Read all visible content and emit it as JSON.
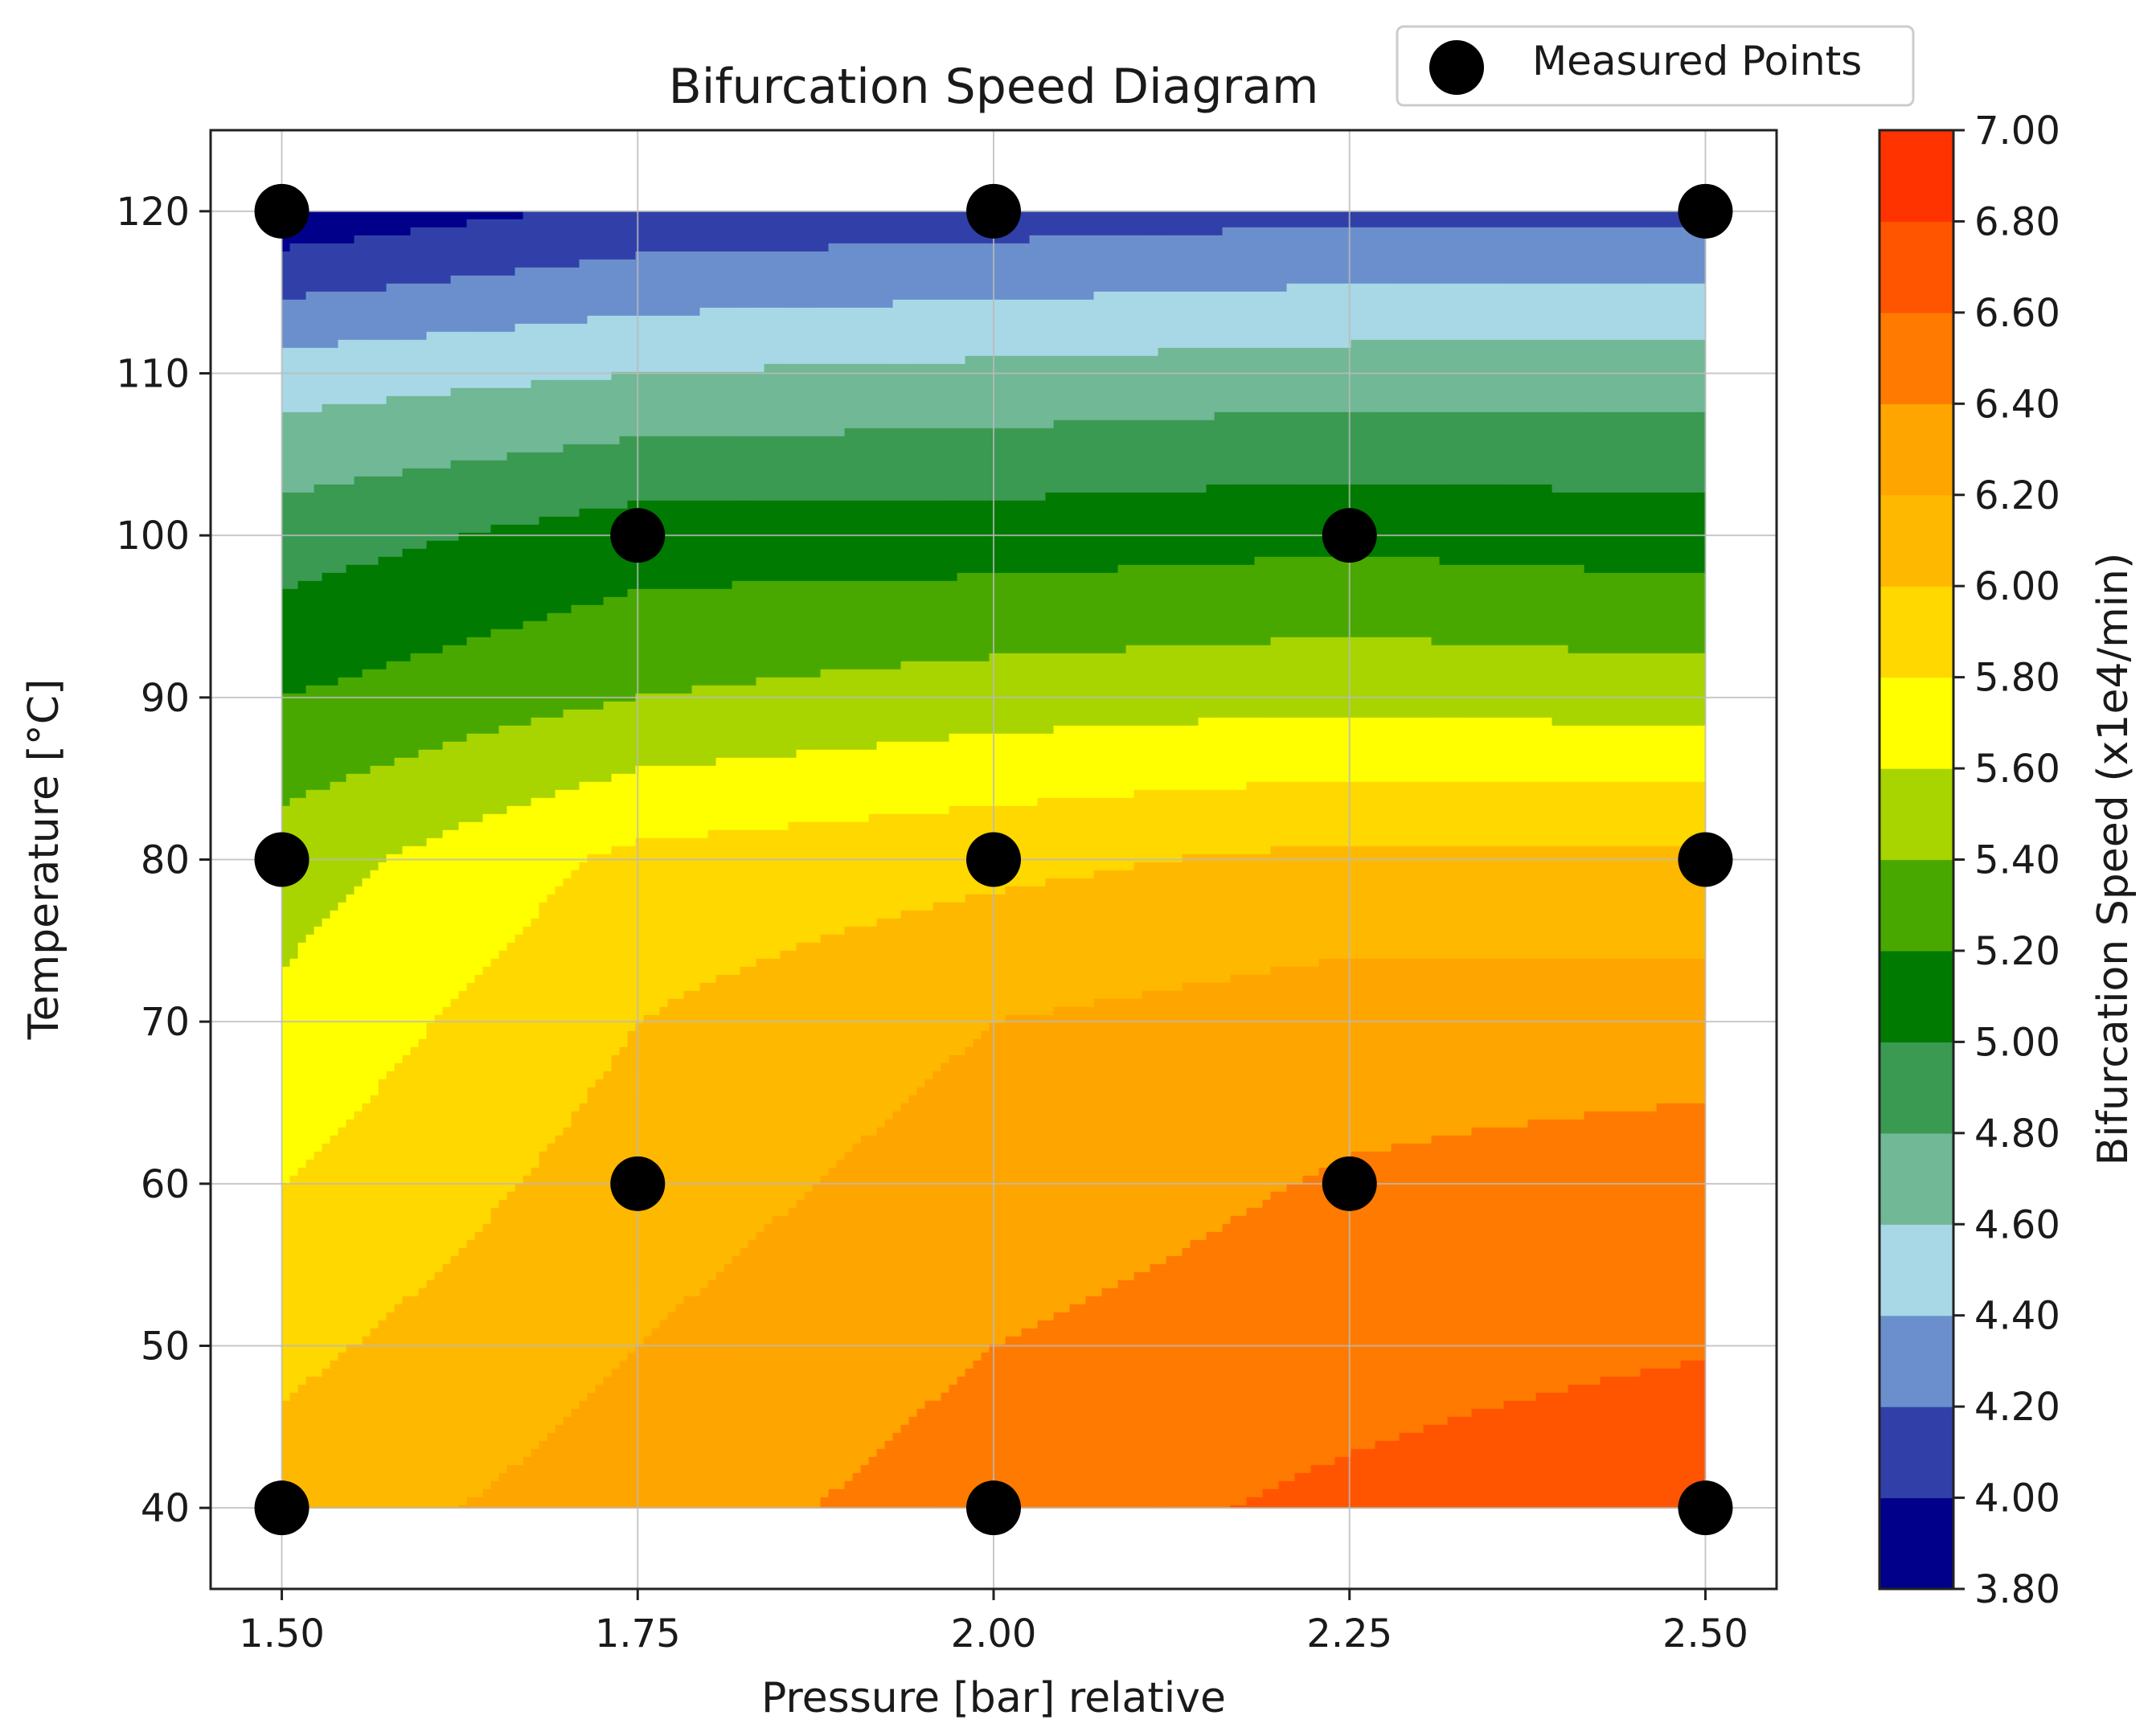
{
  "chart_data": {
    "type": "contour",
    "title": "Bifurcation Speed Diagram",
    "xlabel": "Pressure [bar] relative",
    "ylabel": "Temperature [°C]",
    "xlim": [
      1.45,
      2.55
    ],
    "ylim": [
      35,
      125
    ],
    "xticks": [
      1.5,
      1.75,
      2.0,
      2.25,
      2.5
    ],
    "xtick_labels": [
      "1.50",
      "1.75",
      "2.00",
      "2.25",
      "2.50"
    ],
    "yticks": [
      40,
      50,
      60,
      70,
      80,
      90,
      100,
      110,
      120
    ],
    "ytick_labels": [
      "40",
      "50",
      "60",
      "70",
      "80",
      "90",
      "100",
      "110",
      "120"
    ],
    "grid": true,
    "legend": {
      "label": "Measured Points",
      "placement": "top-right"
    },
    "measured_points": [
      {
        "x": 1.5,
        "y": 120
      },
      {
        "x": 2.0,
        "y": 120
      },
      {
        "x": 2.5,
        "y": 120
      },
      {
        "x": 1.75,
        "y": 100
      },
      {
        "x": 2.25,
        "y": 100
      },
      {
        "x": 1.5,
        "y": 80
      },
      {
        "x": 2.0,
        "y": 80
      },
      {
        "x": 2.5,
        "y": 80
      },
      {
        "x": 1.75,
        "y": 60
      },
      {
        "x": 2.25,
        "y": 60
      },
      {
        "x": 1.5,
        "y": 40
      },
      {
        "x": 2.0,
        "y": 40
      },
      {
        "x": 2.5,
        "y": 40
      }
    ],
    "field_grid": {
      "x": [
        1.5,
        1.75,
        2.0,
        2.25,
        2.5
      ],
      "y": [
        40,
        50,
        60,
        70,
        80,
        90,
        100,
        110,
        120
      ],
      "z": [
        [
          6.1,
          6.3,
          6.5,
          6.65,
          6.8
        ],
        [
          5.95,
          6.2,
          6.4,
          6.5,
          6.58
        ],
        [
          5.8,
          6.1,
          6.3,
          6.42,
          6.5
        ],
        [
          5.65,
          6.0,
          6.2,
          6.3,
          6.3
        ],
        [
          5.5,
          5.85,
          5.95,
          6.05,
          6.05
        ],
        [
          5.2,
          5.4,
          5.5,
          5.55,
          5.5
        ],
        [
          4.9,
          5.1,
          5.1,
          5.15,
          5.1
        ],
        [
          4.5,
          4.6,
          4.65,
          4.7,
          4.7
        ],
        [
          3.85,
          4.05,
          4.1,
          4.15,
          4.15
        ]
      ]
    },
    "colorbar": {
      "label": "Bifurcation Speed (x1e4/min)",
      "range": [
        3.8,
        7.0
      ],
      "levels": [
        3.8,
        4.0,
        4.2,
        4.4,
        4.6,
        4.8,
        5.0,
        5.2,
        5.4,
        5.6,
        5.8,
        6.0,
        6.2,
        6.4,
        6.6,
        6.8,
        7.0
      ],
      "tick_labels": [
        "3.80",
        "4.00",
        "4.20",
        "4.40",
        "4.60",
        "4.80",
        "5.00",
        "5.20",
        "5.40",
        "5.60",
        "5.80",
        "6.00",
        "6.20",
        "6.40",
        "6.60",
        "6.80",
        "7.00"
      ],
      "colors": [
        "#00008b",
        "#3040a8",
        "#6b8fcc",
        "#a8d8e6",
        "#70b896",
        "#3a9a52",
        "#007a00",
        "#48a800",
        "#a8d400",
        "#ffff00",
        "#ffd800",
        "#ffb800",
        "#ffa500",
        "#ff7a00",
        "#ff5500",
        "#ff3300",
        "#ff0000"
      ]
    }
  }
}
